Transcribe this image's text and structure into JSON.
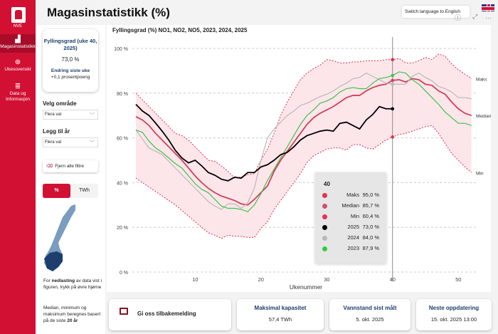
{
  "sidebar": {
    "logo_text": "NVE",
    "items": [
      {
        "label": "Magasinstatistikk",
        "icon": "bar-chart-icon",
        "active": true
      },
      {
        "label": "Ukesoversikt",
        "icon": "search-chart-icon"
      },
      {
        "label": "Data og Informasjon",
        "icon": "database-icon"
      }
    ]
  },
  "header": {
    "title": "Magasinstatistikk (%)",
    "lang_button": "Switch language to English"
  },
  "kpi": {
    "title": "Fyllingsgrad (uke 40, 2025)",
    "value": "73,0 %",
    "change_title": "Endring siste uke",
    "change_value": "+0,1 prosentpoeng"
  },
  "filters": {
    "area_label": "Velg område",
    "area_value": "Flera val",
    "year_label": "Legg til år",
    "year_value": "Flera val",
    "clear_label": "Fjern alle filtre"
  },
  "unit_toggle": {
    "options": [
      "%",
      "TWh"
    ],
    "selected": "%"
  },
  "notes": {
    "download_pre": "For ",
    "download_bold": "nedlasting",
    "download_post": " av data vist i figuren, trykk på øvre hjørne",
    "stats_pre": "Median, minimum og maksimum beregnes basert på de siste ",
    "stats_bold": "20 år"
  },
  "chart_data": {
    "type": "line",
    "title": "Fyllingsgrad (%) NO1, NO2, NO5, 2023, 2024, 2025",
    "xlabel": "Ukenummer",
    "ylabel": "",
    "xlim": [
      1,
      52
    ],
    "ylim": [
      0,
      100
    ],
    "xticks": [
      10,
      20,
      30,
      40,
      50
    ],
    "yticks": [
      "0 %",
      "20 %",
      "40 %",
      "60 %",
      "80 %",
      "100 %"
    ],
    "grid": "horizontal dashed",
    "band_labels": {
      "max": "Maks",
      "median": "Median",
      "min": "Min"
    },
    "series": [
      {
        "name": "Maks",
        "color": "#e0304e",
        "style": "dotted",
        "values": [
          80,
          77,
          74,
          71,
          68,
          65,
          62,
          61,
          59,
          56,
          53,
          50,
          49.5,
          47.5,
          45,
          42,
          42.5,
          43.5,
          44,
          50,
          55,
          62,
          70,
          76,
          81,
          86,
          89,
          91,
          92.5,
          95,
          94.5,
          93.5,
          93.5,
          94,
          94,
          94.5,
          94.5,
          94.5,
          95,
          95,
          95.5,
          93.5,
          93.5,
          94.5,
          96,
          95,
          97.5,
          96.5,
          93,
          90.5,
          88.5,
          86.5
        ]
      },
      {
        "name": "Median",
        "color": "#d0405a",
        "style": "solid",
        "values": [
          69.5,
          68,
          65.5,
          62,
          59,
          56,
          53,
          50,
          46.5,
          43,
          40,
          37.5,
          35.5,
          34,
          33,
          32,
          30.5,
          30,
          32.5,
          35.5,
          38.5,
          45,
          50,
          54,
          58,
          62,
          66,
          69,
          71,
          72.5,
          74,
          76,
          78,
          79,
          79,
          81,
          82.5,
          83.5,
          84,
          85.7,
          86,
          85,
          86.5,
          86,
          84,
          83.5,
          81,
          79.5,
          76,
          73,
          71,
          70
        ]
      },
      {
        "name": "Min",
        "color": "#e0304e",
        "style": "dotted",
        "values": [
          42,
          40,
          38,
          36,
          34,
          32,
          30,
          27.5,
          25,
          22.5,
          20,
          17.5,
          16.5,
          15,
          16.5,
          16,
          16,
          15.5,
          15.5,
          19.5,
          22.5,
          28,
          32,
          36,
          40,
          44,
          49,
          52,
          53.5,
          55,
          55.5,
          55.5,
          54.5,
          57,
          57,
          55.5,
          55,
          57,
          59,
          60.4,
          61.5,
          62,
          63,
          64,
          65,
          65.5,
          62,
          57.5,
          53,
          50,
          47,
          44.5
        ]
      },
      {
        "name": "2024",
        "color": "#b8b8b8",
        "style": "solid",
        "values": [
          63.5,
          59.5,
          55.5,
          54,
          52.5,
          49.5,
          46.5,
          43.5,
          40.5,
          37.5,
          34.5,
          31.5,
          29.5,
          28,
          30.5,
          30.5,
          28.5,
          31,
          37.5,
          50,
          60,
          64,
          67,
          70,
          72,
          74.5,
          75.5,
          77,
          78.5,
          79.5,
          81,
          83,
          84.5,
          86.5,
          87,
          89,
          87.5,
          86,
          84.5,
          84,
          84,
          84,
          87.5,
          89,
          87,
          85.5,
          83,
          82,
          80.5,
          78,
          78,
          77.5
        ]
      },
      {
        "name": "2023",
        "color": "#3cc34a",
        "style": "solid",
        "values": [
          63.5,
          62.5,
          58.5,
          55.5,
          53.5,
          51,
          48.5,
          46.5,
          43,
          39.5,
          37,
          35.5,
          32.5,
          29.5,
          28.5,
          28.5,
          28,
          27,
          30,
          35,
          41,
          46,
          51,
          56,
          61,
          66,
          70,
          72.5,
          75.5,
          76.5,
          78,
          80.5,
          82,
          82.5,
          82,
          82,
          84.5,
          86.5,
          87,
          87.9,
          89.5,
          89,
          86,
          84,
          81,
          78,
          75,
          71.5,
          69,
          66.5,
          66.5,
          65.5
        ]
      },
      {
        "name": "2025",
        "color": "#000000",
        "style": "solid",
        "values": [
          75,
          72,
          70,
          66.6,
          63,
          59,
          54.4,
          51,
          48.8,
          50,
          47.5,
          44.5,
          43.3,
          41.5,
          40.8,
          42.4,
          42,
          44.5,
          44.5,
          47,
          48,
          50,
          52.5,
          53.5,
          56,
          59,
          61,
          62,
          63,
          63.5,
          63,
          66.5,
          67,
          65.5,
          64,
          68,
          70.5,
          74,
          73,
          73
        ]
      }
    ],
    "hover": {
      "week": "40",
      "rows": [
        {
          "name": "Maks",
          "value": "95,0 %",
          "color": "#e8304e"
        },
        {
          "name": "Median",
          "value": "85,7 %",
          "color": "#d0506a"
        },
        {
          "name": "Min",
          "value": "60,4 %",
          "color": "#e8304e"
        },
        {
          "name": "2025",
          "value": "73,0 %",
          "color": "#000000"
        },
        {
          "name": "2024",
          "value": "84,0 %",
          "color": "#b8b8b8"
        },
        {
          "name": "2023",
          "value": "87,9 %",
          "color": "#2ecc40"
        }
      ]
    }
  },
  "cards": {
    "feedback": "Gi oss tilbakemelding",
    "capacity_title": "Maksimal kapasitet",
    "capacity_value": "57,4 TWh",
    "measured_title": "Vannstand sist målt",
    "measured_value": "5. okt. 2025",
    "next_title": "Neste oppdatering",
    "next_value": "15. okt. 2025 13:00"
  }
}
